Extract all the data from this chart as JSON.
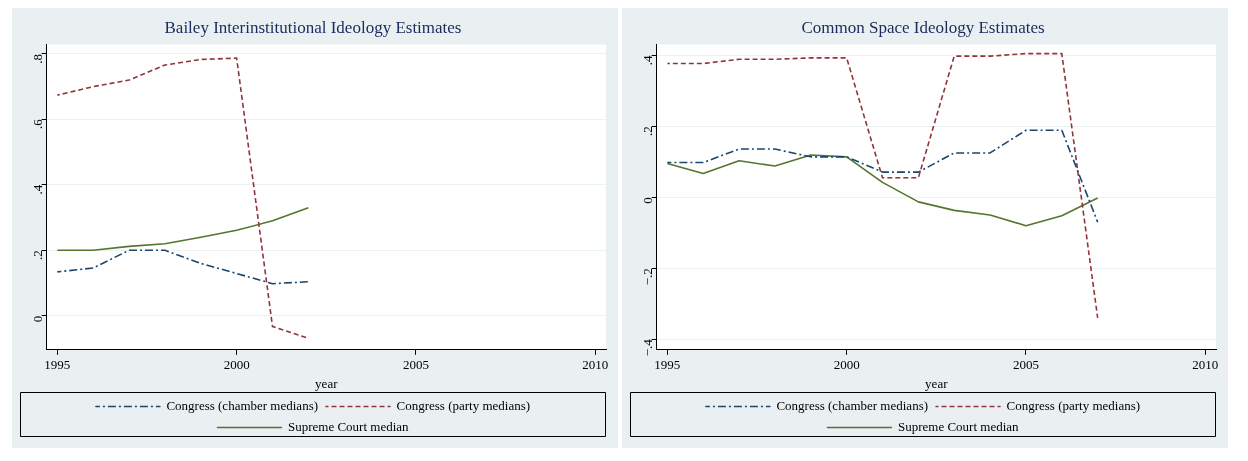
{
  "chart_data": [
    {
      "type": "line",
      "title": "Bailey Interinstitutional Ideology Estimates",
      "xlabel": "year",
      "x": [
        1995,
        1996,
        1997,
        1998,
        1999,
        2000,
        2001,
        2002
      ],
      "series": [
        {
          "name": "Congress (chamber medians)",
          "color": "#1a476f",
          "line_style": "dashdot",
          "values": [
            0.134,
            0.146,
            0.2,
            0.2,
            0.16,
            0.129,
            0.098,
            0.104
          ]
        },
        {
          "name": "Congress (party medians)",
          "color": "#90353b",
          "line_style": "dashed",
          "values": [
            0.674,
            0.7,
            0.72,
            0.766,
            0.783,
            0.787,
            -0.033,
            -0.069
          ]
        },
        {
          "name": "Supreme Court median",
          "color": "#55752f",
          "line_style": "solid",
          "values": [
            0.2,
            0.2,
            0.212,
            0.22,
            0.24,
            0.261,
            0.29,
            0.33
          ]
        }
      ],
      "xlim": [
        1994.7,
        2010.3
      ],
      "xticks": [
        1995,
        2000,
        2005,
        2010
      ],
      "ylim": [
        -0.104,
        0.829
      ],
      "yticks": [
        0,
        {
          "value": 0.2,
          "label": ".2"
        },
        {
          "value": 0.4,
          "label": ".4"
        },
        {
          "value": 0.6,
          "label": ".6"
        },
        {
          "value": 0.8,
          "label": ".8"
        }
      ],
      "grid": "y",
      "legend": "bottom",
      "marker": "none"
    },
    {
      "type": "line",
      "title": "Common Space Ideology Estimates",
      "xlabel": "year",
      "x": [
        1995,
        1996,
        1997,
        1998,
        1999,
        2000,
        2001,
        2002,
        2003,
        2004,
        2005,
        2006,
        2007
      ],
      "series": [
        {
          "name": "Congress (chamber medians)",
          "color": "#1a476f",
          "line_style": "dashdot",
          "values": [
            0.098,
            0.098,
            0.136,
            0.136,
            0.114,
            0.114,
            0.071,
            0.071,
            0.125,
            0.125,
            0.189,
            0.189,
            -0.07
          ]
        },
        {
          "name": "Congress (party medians)",
          "color": "#90353b",
          "line_style": "dashed",
          "values": [
            0.377,
            0.377,
            0.389,
            0.389,
            0.393,
            0.393,
            0.055,
            0.055,
            0.398,
            0.398,
            0.405,
            0.405,
            -0.34
          ]
        },
        {
          "name": "Supreme Court median",
          "color": "#55752f",
          "line_style": "solid",
          "values": [
            0.095,
            0.067,
            0.103,
            0.088,
            0.119,
            0.114,
            0.042,
            -0.013,
            -0.037,
            -0.05,
            -0.08,
            -0.052,
            -0.002
          ]
        }
      ],
      "xlim": [
        1994.7,
        2010.3
      ],
      "xticks": [
        1995,
        2000,
        2005,
        2010
      ],
      "ylim": [
        -0.43,
        0.431
      ],
      "yticks": [
        {
          "value": -0.4,
          "label": "−.4"
        },
        {
          "value": -0.2,
          "label": "−.2"
        },
        0,
        {
          "value": 0.2,
          "label": ".2"
        },
        {
          "value": 0.4,
          "label": ".4"
        }
      ],
      "grid": "y",
      "legend": "bottom",
      "marker": "none"
    }
  ]
}
